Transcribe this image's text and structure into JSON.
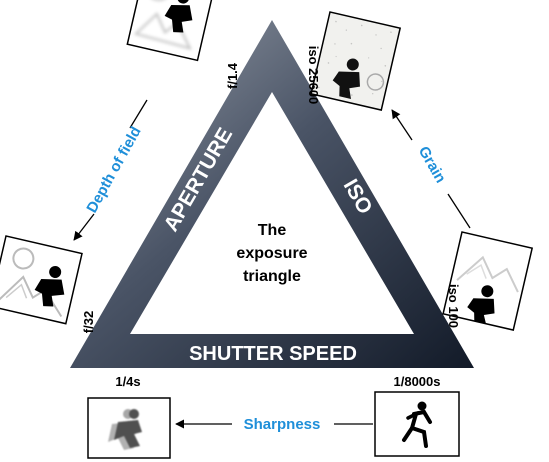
{
  "title": "The exposure triangle",
  "title_lines": [
    "The",
    "exposure",
    "triangle"
  ],
  "sides": {
    "aperture": "APERTURE",
    "iso": "ISO",
    "shutter": "SHUTTER SPEED"
  },
  "aperture": {
    "axis_label": "Depth of field",
    "wide": "f/1.4",
    "narrow": "f/32"
  },
  "iso": {
    "axis_label": "Grain",
    "high": "iso 25600",
    "low": "iso 100"
  },
  "shutter": {
    "axis_label": "Sharpness",
    "slow": "1/4s",
    "fast": "1/8000s"
  },
  "colors": {
    "triangle_light": "#8a929e",
    "triangle_dark": "#141c2a",
    "accent_blue": "#1f8fd9",
    "text": "#000000"
  }
}
